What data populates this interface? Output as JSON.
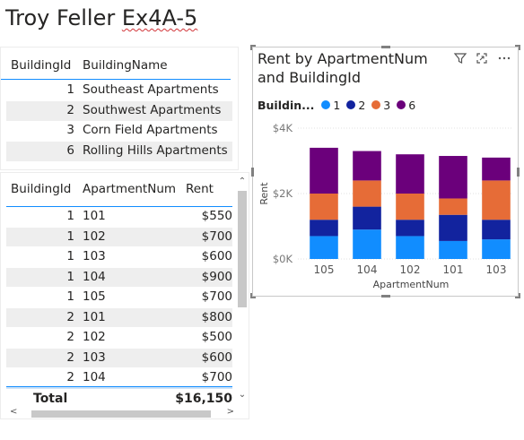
{
  "page": {
    "title_main": "Troy Feller ",
    "title_spell": "Ex4A-5"
  },
  "building_table": {
    "headers": [
      "BuildingId",
      "BuildingName"
    ],
    "rows": [
      {
        "id": "1",
        "name": "Southeast Apartments"
      },
      {
        "id": "2",
        "name": "Southwest Apartments"
      },
      {
        "id": "3",
        "name": "Corn Field Apartments"
      },
      {
        "id": "6",
        "name": "Rolling Hills Apartments"
      }
    ]
  },
  "apartment_table": {
    "headers": [
      "BuildingId",
      "ApartmentNum",
      "Rent"
    ],
    "rows": [
      {
        "b": "1",
        "a": "101",
        "r": "$550"
      },
      {
        "b": "1",
        "a": "102",
        "r": "$700"
      },
      {
        "b": "1",
        "a": "103",
        "r": "$600"
      },
      {
        "b": "1",
        "a": "104",
        "r": "$900"
      },
      {
        "b": "1",
        "a": "105",
        "r": "$700"
      },
      {
        "b": "2",
        "a": "101",
        "r": "$800"
      },
      {
        "b": "2",
        "a": "102",
        "r": "$500"
      },
      {
        "b": "2",
        "a": "103",
        "r": "$600"
      },
      {
        "b": "2",
        "a": "104",
        "r": "$700"
      }
    ],
    "total_label": "Total",
    "total_value": "$16,150"
  },
  "chart_visual": {
    "title": "Rent by ApartmentNum and BuildingId",
    "icons": [
      "filter-icon",
      "focus-mode-icon",
      "more-options-icon"
    ],
    "legend_title": "Buildin...",
    "legend": [
      {
        "label": "1",
        "color": "#118dff"
      },
      {
        "label": "2",
        "color": "#12239e"
      },
      {
        "label": "3",
        "color": "#e66c37"
      },
      {
        "label": "6",
        "color": "#6b007b"
      }
    ]
  },
  "chart_data": {
    "type": "bar",
    "stacked": true,
    "title": "Rent by ApartmentNum and BuildingId",
    "xlabel": "ApartmentNum",
    "ylabel": "Rent",
    "categories": [
      "105",
      "104",
      "102",
      "101",
      "103"
    ],
    "y_ticks": [
      "$0K",
      "$2K",
      "$4K"
    ],
    "ylim": [
      0,
      4000
    ],
    "series": [
      {
        "name": "1",
        "color": "#118dff",
        "values": [
          700,
          900,
          700,
          550,
          600
        ]
      },
      {
        "name": "2",
        "color": "#12239e",
        "values": [
          500,
          700,
          500,
          800,
          600
        ]
      },
      {
        "name": "3",
        "color": "#e66c37",
        "values": [
          800,
          800,
          800,
          500,
          1200
        ]
      },
      {
        "name": "6",
        "color": "#6b007b",
        "values": [
          1400,
          900,
          1200,
          1300,
          700
        ]
      }
    ],
    "grid": true,
    "legend_position": "top-left"
  }
}
